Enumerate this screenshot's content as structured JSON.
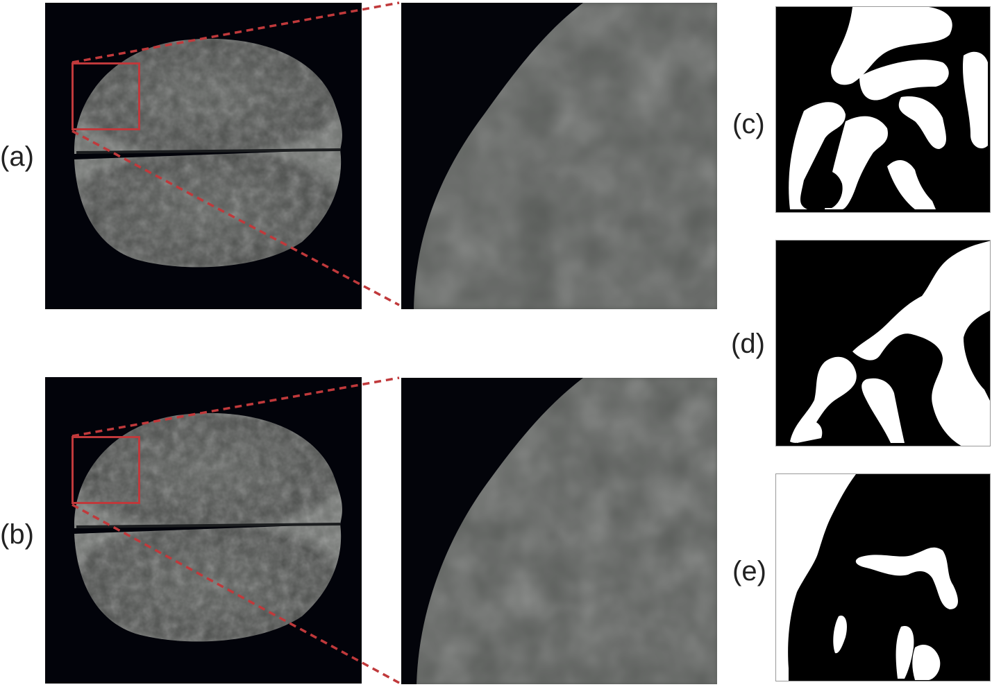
{
  "labels": {
    "a": "(a)",
    "b": "(b)",
    "c": "(c)",
    "d": "(d)",
    "e": "(e)"
  },
  "colors": {
    "background": "#02030a",
    "zoom_box": "#c0393b",
    "tissue": "#5a5d5a",
    "mask_white": "#ffffff",
    "mask_black": "#000000"
  }
}
